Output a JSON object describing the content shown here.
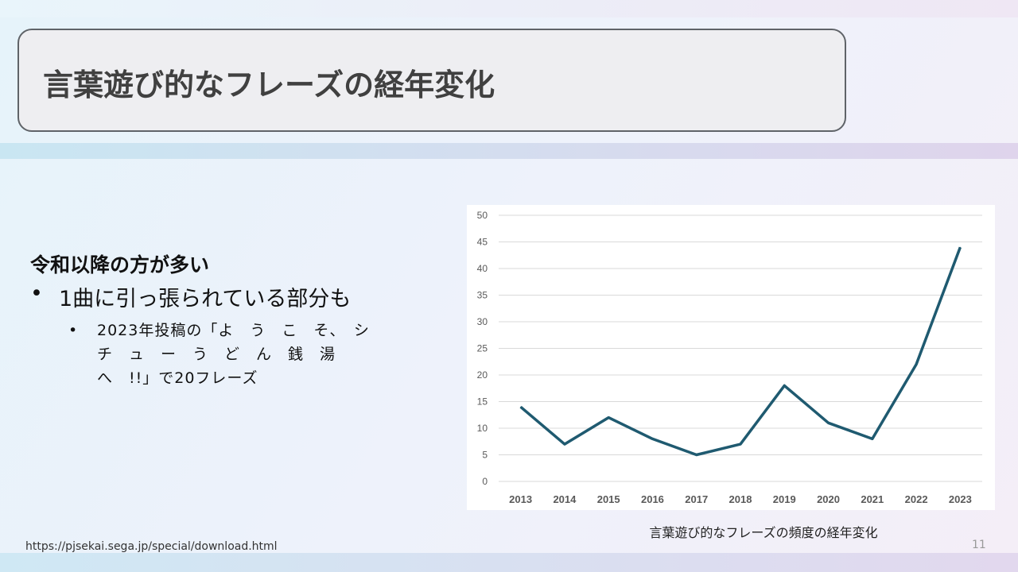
{
  "slide": {
    "title": "言葉遊び的なフレーズの経年変化",
    "heading": "令和以降の方が多い",
    "bullet_marker": "•",
    "bullet1": "1曲に引っ張られている部分も",
    "bullet2_lines": [
      "2023年投稿の「よ　う　こ　そ、　シ",
      "チ　ュ　ー　う　ど　ん　銭　湯",
      "へ　!!」で20フレーズ"
    ],
    "caption": "言葉遊び的なフレーズの頻度の経年変化",
    "source": "https://pjsekai.sega.jp/special/download.html",
    "page_number": "11"
  },
  "colors": {
    "line": "#1f5a70",
    "grid": "#d9d9d9",
    "axis_text": "#595959"
  },
  "chart_data": {
    "type": "line",
    "title": "",
    "xlabel": "",
    "ylabel": "",
    "ylim": [
      0,
      50
    ],
    "yticks": [
      0,
      5,
      10,
      15,
      20,
      25,
      30,
      35,
      40,
      45,
      50
    ],
    "grid": true,
    "categories": [
      "2013",
      "2014",
      "2015",
      "2016",
      "2017",
      "2018",
      "2019",
      "2020",
      "2021",
      "2022",
      "2023"
    ],
    "series": [
      {
        "values": [
          14,
          7,
          12,
          8,
          5,
          7,
          18,
          11,
          8,
          22,
          44
        ]
      }
    ]
  }
}
